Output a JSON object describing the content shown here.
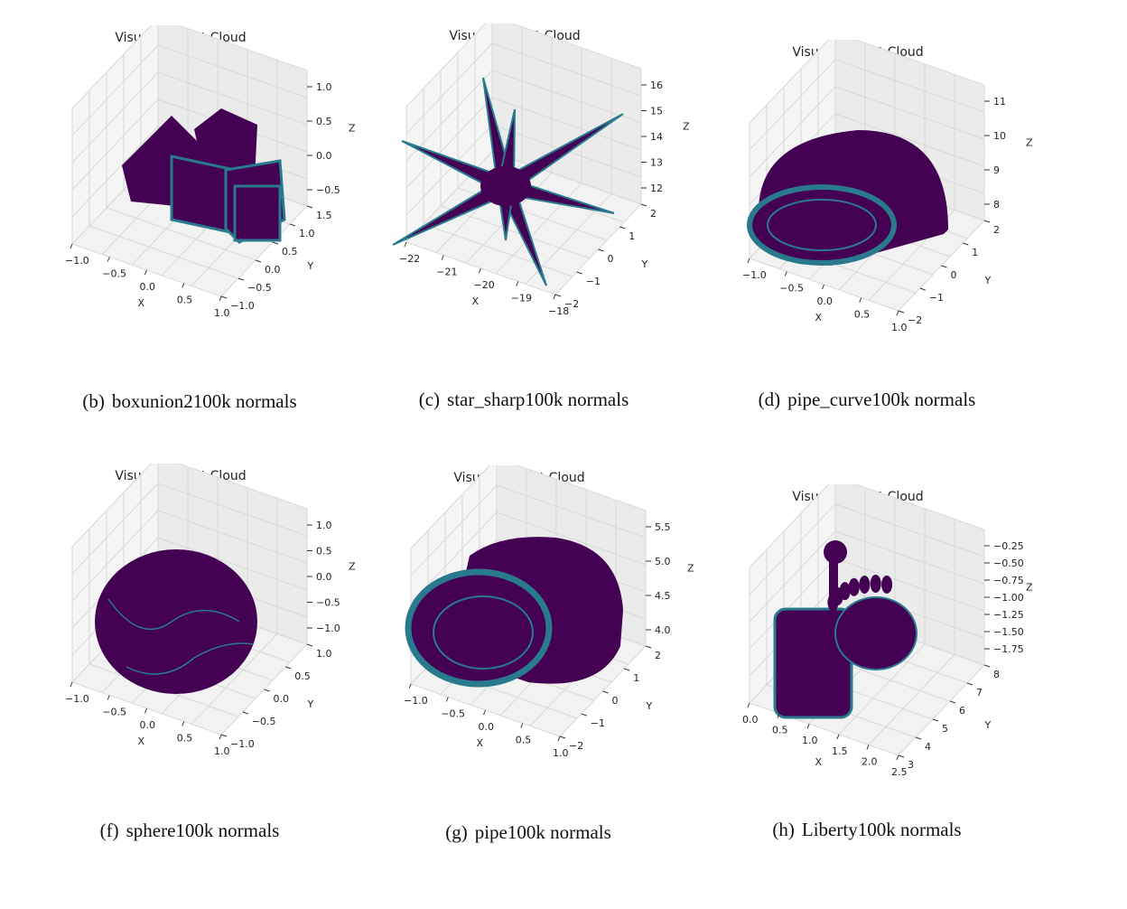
{
  "colors": {
    "surface": "#440154",
    "edge": "#2a7a8e",
    "edge_hi": "#35b779",
    "grid": "#d8d8d8",
    "pane": "#f2f2f2"
  },
  "panels": [
    {
      "title": "Visualize Point Cloud",
      "caption_label": "(b)",
      "caption_text": "boxunion2100k normals",
      "shape": "boxes",
      "x_ticks": [
        "−1.0",
        "−0.5",
        "0.0",
        "0.5",
        "1.0"
      ],
      "y_ticks": [
        "−1.0",
        "−0.5",
        "0.0",
        "0.5",
        "1.0",
        "1.5"
      ],
      "z_ticks": [
        "−0.5",
        "0.0",
        "0.5",
        "1.0"
      ],
      "x_label": "X",
      "y_label": "Y",
      "z_label": "Z"
    },
    {
      "title": "Visualize Point Cloud",
      "caption_label": "(c)",
      "caption_text": "star_sharp100k normals",
      "shape": "star",
      "x_ticks": [
        "−22",
        "−21",
        "−20",
        "−19",
        "−18"
      ],
      "y_ticks": [
        "−2",
        "−1",
        "0",
        "1",
        "2"
      ],
      "z_ticks": [
        "12",
        "13",
        "14",
        "15",
        "16"
      ],
      "x_label": "X",
      "y_label": "Y",
      "z_label": "Z"
    },
    {
      "title": "Visualize Point Cloud",
      "caption_label": "(d)",
      "caption_text": "pipe_curve100k normals",
      "shape": "curve",
      "x_ticks": [
        "−1.0",
        "−0.5",
        "0.0",
        "0.5",
        "1.0"
      ],
      "y_ticks": [
        "−2",
        "−1",
        "0",
        "1",
        "2"
      ],
      "z_ticks": [
        "8",
        "9",
        "10",
        "11"
      ],
      "x_label": "X",
      "y_label": "Y",
      "z_label": "Z"
    },
    {
      "title": "Visualize Point Cloud",
      "caption_label": "(f)",
      "caption_text": "sphere100k normals",
      "shape": "sphere",
      "x_ticks": [
        "−1.0",
        "−0.5",
        "0.0",
        "0.5",
        "1.0"
      ],
      "y_ticks": [
        "−1.0",
        "−0.5",
        "0.0",
        "0.5",
        "1.0"
      ],
      "z_ticks": [
        "−1.0",
        "−0.5",
        "0.0",
        "0.5",
        "1.0"
      ],
      "x_label": "X",
      "y_label": "Y",
      "z_label": "Z"
    },
    {
      "title": "Visualize Point Cloud",
      "caption_label": "(g)",
      "caption_text": "pipe100k normals",
      "shape": "pipe",
      "x_ticks": [
        "−1.0",
        "−0.5",
        "0.0",
        "0.5",
        "1.0"
      ],
      "y_ticks": [
        "−2",
        "−1",
        "0",
        "1",
        "2"
      ],
      "z_ticks": [
        "4.0",
        "4.5",
        "5.0",
        "5.5"
      ],
      "x_label": "X",
      "y_label": "Y",
      "z_label": "Z"
    },
    {
      "title": "Visualize Point Cloud",
      "caption_label": "(h)",
      "caption_text": "Liberty100k normals",
      "shape": "liberty",
      "x_ticks": [
        "0.0",
        "0.5",
        "1.0",
        "1.5",
        "2.0",
        "2.5"
      ],
      "y_ticks": [
        "3",
        "4",
        "5",
        "6",
        "7",
        "8"
      ],
      "z_ticks": [
        "−1.75",
        "−1.50",
        "−1.25",
        "−1.00",
        "−0.75",
        "−0.50",
        "−0.25"
      ],
      "x_label": "X",
      "y_label": "Y",
      "z_label": "Z"
    }
  ],
  "chart_data": [
    {
      "type": "scatter",
      "title": "Visualize Point Cloud",
      "xlabel": "X",
      "ylabel": "Y",
      "zlabel": "Z",
      "xlim": [
        -1.0,
        1.0
      ],
      "ylim": [
        -1.0,
        1.5
      ],
      "zlim": [
        -0.5,
        1.0
      ]
    },
    {
      "type": "scatter",
      "title": "Visualize Point Cloud",
      "xlabel": "X",
      "ylabel": "Y",
      "zlabel": "Z",
      "xlim": [
        -22,
        -18
      ],
      "ylim": [
        -2,
        2
      ],
      "zlim": [
        12,
        16
      ]
    },
    {
      "type": "scatter",
      "title": "Visualize Point Cloud",
      "xlabel": "X",
      "ylabel": "Y",
      "zlabel": "Z",
      "xlim": [
        -1.0,
        1.0
      ],
      "ylim": [
        -2,
        2
      ],
      "zlim": [
        8,
        11
      ]
    },
    {
      "type": "scatter",
      "title": "Visualize Point Cloud",
      "xlabel": "X",
      "ylabel": "Y",
      "zlabel": "Z",
      "xlim": [
        -1.0,
        1.0
      ],
      "ylim": [
        -1.0,
        1.0
      ],
      "zlim": [
        -1.0,
        1.0
      ]
    },
    {
      "type": "scatter",
      "title": "Visualize Point Cloud",
      "xlabel": "X",
      "ylabel": "Y",
      "zlabel": "Z",
      "xlim": [
        -1.0,
        1.0
      ],
      "ylim": [
        -2,
        2
      ],
      "zlim": [
        4.0,
        5.5
      ]
    },
    {
      "type": "scatter",
      "title": "Visualize Point Cloud",
      "xlabel": "X",
      "ylabel": "Y",
      "zlabel": "Z",
      "xlim": [
        0.0,
        2.5
      ],
      "ylim": [
        3,
        8
      ],
      "zlim": [
        -1.75,
        -0.25
      ]
    }
  ]
}
